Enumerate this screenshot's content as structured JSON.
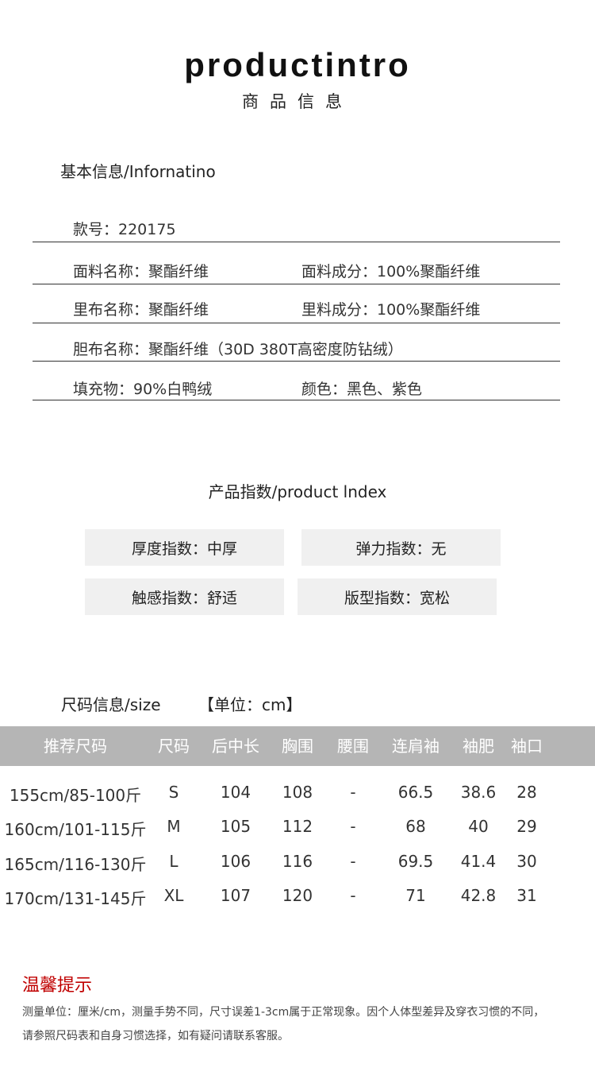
{
  "header": {
    "title": "productintro",
    "subtitle": "商品信息"
  },
  "basic": {
    "heading": "基本信息/Infornatino",
    "rows": [
      [
        "款号：220175",
        ""
      ],
      [
        "面料名称：聚酯纤维",
        "面料成分：100%聚酯纤维"
      ],
      [
        "里布名称：聚酯纤维",
        "里料成分：100%聚酯纤维"
      ],
      [
        "胆布名称：聚酯纤维（30D 380T高密度防钻绒）",
        ""
      ],
      [
        "填充物：90%白鸭绒",
        "颜色：黑色、紫色"
      ]
    ]
  },
  "index": {
    "heading": "产品指数/product lndex",
    "items": [
      "厚度指数：中厚",
      "弹力指数：无",
      "触感指数：舒适",
      "版型指数：宽松"
    ]
  },
  "size": {
    "heading": "尺码信息/size",
    "unit": "【单位：cm】",
    "columns": [
      "推荐尺码",
      "尺码",
      "后中长",
      "胸围",
      "腰围",
      "连肩袖",
      "袖肥",
      "袖口"
    ],
    "rows": [
      [
        "155cm/85-100斤",
        "S",
        "104",
        "108",
        "-",
        "66.5",
        "38.6",
        "28"
      ],
      [
        "160cm/101-115斤",
        "M",
        "105",
        "112",
        "-",
        "68",
        "40",
        "29"
      ],
      [
        "165cm/116-130斤",
        "L",
        "106",
        "116",
        "-",
        "69.5",
        "41.4",
        "30"
      ],
      [
        "170cm/131-145斤",
        "XL",
        "107",
        "120",
        "-",
        "71",
        "42.8",
        "31"
      ]
    ]
  },
  "tips": {
    "heading": "温馨提示",
    "line1": "测量单位：厘米/cm，测量手势不同，尺寸误差1-3cm属于正常现象。因个人体型差异及穿衣习惯的不同，",
    "line2": "请参照尺码表和自身习惯选择，如有疑问请联系客服。"
  },
  "colors": {
    "header_bar": "#b5b5b5",
    "tip_red": "#c00000",
    "index_box": "#f0f0f0"
  }
}
